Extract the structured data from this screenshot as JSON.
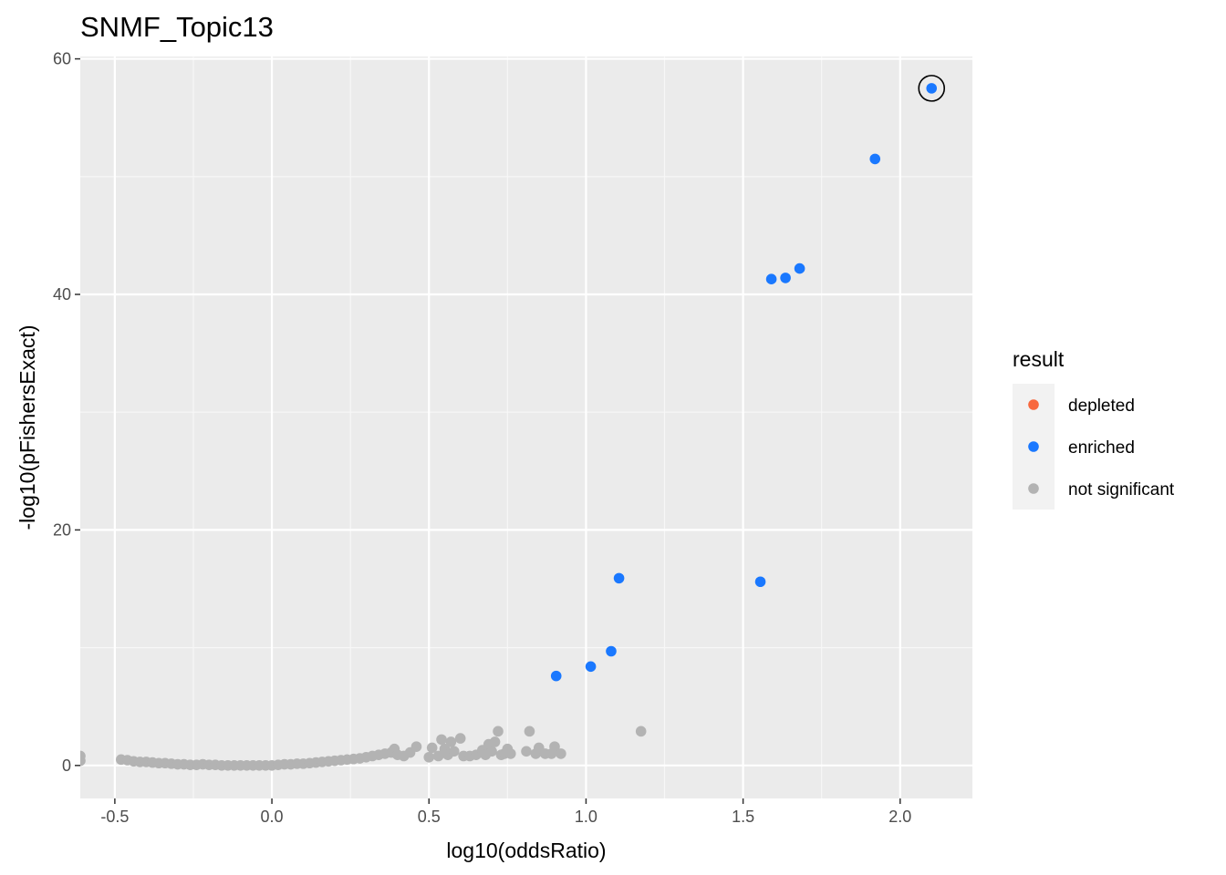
{
  "chart_data": {
    "type": "scatter",
    "title": "SNMF_Topic13",
    "xlabel": "log10(oddsRatio)",
    "ylabel": "-log10(pFishersExact)",
    "xlim": [
      -0.61,
      2.23
    ],
    "ylim": [
      -2.8,
      60.2
    ],
    "x_ticks": [
      {
        "value": -0.5,
        "label": "-0.5"
      },
      {
        "value": 0.0,
        "label": "0.0"
      },
      {
        "value": 0.5,
        "label": "0.5"
      },
      {
        "value": 1.0,
        "label": "1.0"
      },
      {
        "value": 1.5,
        "label": "1.5"
      },
      {
        "value": 2.0,
        "label": "2.0"
      }
    ],
    "y_ticks": [
      {
        "value": 0,
        "label": "0"
      },
      {
        "value": 20,
        "label": "20"
      },
      {
        "value": 40,
        "label": "40"
      },
      {
        "value": 60,
        "label": "60"
      }
    ],
    "grid": true,
    "legend": {
      "title": "result",
      "position": "right",
      "entries": [
        {
          "key": "depleted",
          "label": "depleted",
          "color": "#F8683E"
        },
        {
          "key": "enriched",
          "label": "enriched",
          "color": "#1A78FF"
        },
        {
          "key": "not_significant",
          "label": "not significant",
          "color": "#B3B3B3"
        }
      ]
    },
    "highlighted_point": {
      "x": 2.1,
      "y": 57.5
    },
    "series": [
      {
        "key": "enriched",
        "points": [
          {
            "x": 2.1,
            "y": 57.5
          },
          {
            "x": 1.92,
            "y": 51.5
          },
          {
            "x": 1.68,
            "y": 42.2
          },
          {
            "x": 1.635,
            "y": 41.4
          },
          {
            "x": 1.59,
            "y": 41.3
          },
          {
            "x": 1.105,
            "y": 15.9
          },
          {
            "x": 1.555,
            "y": 15.6
          },
          {
            "x": 1.08,
            "y": 9.7
          },
          {
            "x": 1.015,
            "y": 8.4
          },
          {
            "x": 0.905,
            "y": 7.6
          }
        ]
      },
      {
        "key": "not_significant",
        "points": [
          {
            "x": -0.61,
            "y": 0.8
          },
          {
            "x": -0.61,
            "y": 0.4
          },
          {
            "x": -0.48,
            "y": 0.5
          },
          {
            "x": -0.46,
            "y": 0.45
          },
          {
            "x": -0.44,
            "y": 0.35
          },
          {
            "x": -0.42,
            "y": 0.3
          },
          {
            "x": -0.4,
            "y": 0.3
          },
          {
            "x": -0.38,
            "y": 0.25
          },
          {
            "x": -0.36,
            "y": 0.2
          },
          {
            "x": -0.34,
            "y": 0.2
          },
          {
            "x": -0.32,
            "y": 0.15
          },
          {
            "x": -0.3,
            "y": 0.1
          },
          {
            "x": -0.28,
            "y": 0.1
          },
          {
            "x": -0.26,
            "y": 0.05
          },
          {
            "x": -0.24,
            "y": 0.05
          },
          {
            "x": -0.22,
            "y": 0.1
          },
          {
            "x": -0.2,
            "y": 0.05
          },
          {
            "x": -0.18,
            "y": 0.05
          },
          {
            "x": -0.16,
            "y": 0.0
          },
          {
            "x": -0.14,
            "y": 0.0
          },
          {
            "x": -0.12,
            "y": 0.0
          },
          {
            "x": -0.1,
            "y": 0.0
          },
          {
            "x": -0.08,
            "y": 0.0
          },
          {
            "x": -0.06,
            "y": 0.0
          },
          {
            "x": -0.04,
            "y": 0.0
          },
          {
            "x": -0.02,
            "y": 0.0
          },
          {
            "x": 0.0,
            "y": 0.0
          },
          {
            "x": 0.02,
            "y": 0.05
          },
          {
            "x": 0.04,
            "y": 0.1
          },
          {
            "x": 0.06,
            "y": 0.1
          },
          {
            "x": 0.08,
            "y": 0.15
          },
          {
            "x": 0.1,
            "y": 0.15
          },
          {
            "x": 0.12,
            "y": 0.2
          },
          {
            "x": 0.14,
            "y": 0.25
          },
          {
            "x": 0.16,
            "y": 0.3
          },
          {
            "x": 0.18,
            "y": 0.35
          },
          {
            "x": 0.2,
            "y": 0.4
          },
          {
            "x": 0.22,
            "y": 0.45
          },
          {
            "x": 0.24,
            "y": 0.5
          },
          {
            "x": 0.26,
            "y": 0.55
          },
          {
            "x": 0.28,
            "y": 0.6
          },
          {
            "x": 0.3,
            "y": 0.7
          },
          {
            "x": 0.32,
            "y": 0.8
          },
          {
            "x": 0.34,
            "y": 0.9
          },
          {
            "x": 0.36,
            "y": 1.0
          },
          {
            "x": 0.38,
            "y": 1.1
          },
          {
            "x": 0.39,
            "y": 1.4
          },
          {
            "x": 0.4,
            "y": 0.9
          },
          {
            "x": 0.42,
            "y": 0.8
          },
          {
            "x": 0.44,
            "y": 1.1
          },
          {
            "x": 0.46,
            "y": 1.6
          },
          {
            "x": 0.5,
            "y": 0.7
          },
          {
            "x": 0.51,
            "y": 1.5
          },
          {
            "x": 0.53,
            "y": 0.8
          },
          {
            "x": 0.54,
            "y": 2.2
          },
          {
            "x": 0.55,
            "y": 1.4
          },
          {
            "x": 0.56,
            "y": 0.9
          },
          {
            "x": 0.57,
            "y": 2.0
          },
          {
            "x": 0.58,
            "y": 1.2
          },
          {
            "x": 0.6,
            "y": 2.3
          },
          {
            "x": 0.61,
            "y": 0.8
          },
          {
            "x": 0.63,
            "y": 0.8
          },
          {
            "x": 0.65,
            "y": 0.9
          },
          {
            "x": 0.67,
            "y": 1.3
          },
          {
            "x": 0.68,
            "y": 0.9
          },
          {
            "x": 0.69,
            "y": 1.8
          },
          {
            "x": 0.7,
            "y": 1.2
          },
          {
            "x": 0.71,
            "y": 2.0
          },
          {
            "x": 0.72,
            "y": 2.9
          },
          {
            "x": 0.73,
            "y": 0.9
          },
          {
            "x": 0.74,
            "y": 1.0
          },
          {
            "x": 0.75,
            "y": 1.4
          },
          {
            "x": 0.76,
            "y": 1.0
          },
          {
            "x": 0.81,
            "y": 1.2
          },
          {
            "x": 0.82,
            "y": 2.9
          },
          {
            "x": 0.84,
            "y": 1.0
          },
          {
            "x": 0.85,
            "y": 1.5
          },
          {
            "x": 0.87,
            "y": 1.0
          },
          {
            "x": 0.89,
            "y": 1.0
          },
          {
            "x": 0.9,
            "y": 1.6
          },
          {
            "x": 0.92,
            "y": 1.0
          },
          {
            "x": 1.175,
            "y": 2.9
          }
        ]
      },
      {
        "key": "depleted",
        "points": []
      }
    ]
  }
}
